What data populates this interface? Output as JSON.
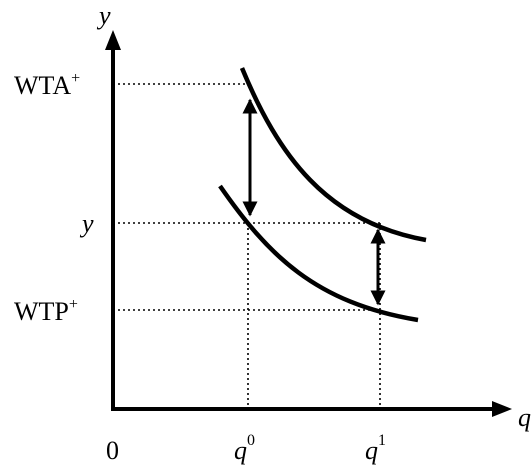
{
  "axes": {
    "y_axis_label": "y",
    "x_axis_label": "q",
    "origin_label": "0"
  },
  "y_labels": {
    "wta": {
      "base": "WTA",
      "sup": "+"
    },
    "y": "y",
    "wtp": {
      "base": "WTP",
      "sup": "+"
    }
  },
  "x_labels": {
    "q0": {
      "base": "q",
      "sup": "0"
    },
    "q1": {
      "base": "q",
      "sup": "1"
    }
  },
  "curves": {
    "upper": "indifference-curve-upper",
    "lower": "indifference-curve-lower"
  },
  "colors": {
    "ink": "#000000",
    "background": "#ffffff"
  }
}
